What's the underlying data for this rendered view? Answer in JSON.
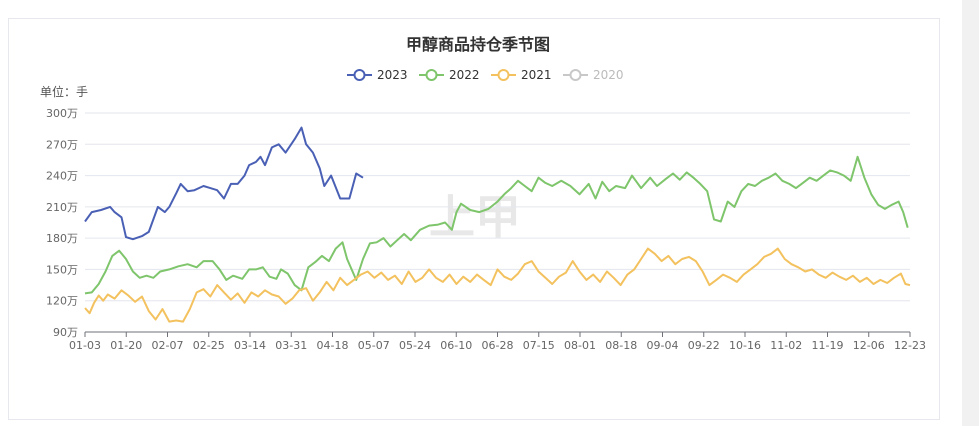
{
  "chart_data": {
    "type": "line",
    "title": "甲醇商品持仓季节图",
    "unit_label": "单位：手",
    "watermark": "上甲",
    "x_ticks": [
      "01-03",
      "01-20",
      "02-07",
      "02-25",
      "03-14",
      "03-31",
      "04-18",
      "05-07",
      "05-24",
      "06-10",
      "06-28",
      "07-15",
      "08-01",
      "08-18",
      "09-04",
      "09-22",
      "10-16",
      "11-02",
      "11-19",
      "12-06",
      "12-23"
    ],
    "y_ticks": [
      "90万",
      "120万",
      "150万",
      "180万",
      "210万",
      "240万",
      "270万",
      "300万"
    ],
    "ylim": [
      90,
      300
    ],
    "y_unit": "万手",
    "x_range_day_of_year": [
      3,
      365
    ],
    "grid": "horizontal",
    "legend_position": "top-center",
    "series": [
      {
        "name": "2023",
        "color": "#4a60b5",
        "active": true,
        "points": [
          [
            3,
            196
          ],
          [
            6,
            205
          ],
          [
            10,
            207
          ],
          [
            14,
            210
          ],
          [
            16,
            205
          ],
          [
            19,
            200
          ],
          [
            21,
            181
          ],
          [
            24,
            179
          ],
          [
            28,
            182
          ],
          [
            31,
            186
          ],
          [
            35,
            210
          ],
          [
            38,
            205
          ],
          [
            40,
            210
          ],
          [
            43,
            223
          ],
          [
            45,
            232
          ],
          [
            48,
            225
          ],
          [
            51,
            226
          ],
          [
            55,
            230
          ],
          [
            58,
            228
          ],
          [
            61,
            226
          ],
          [
            64,
            218
          ],
          [
            67,
            232
          ],
          [
            70,
            232
          ],
          [
            73,
            240
          ],
          [
            75,
            250
          ],
          [
            78,
            253
          ],
          [
            80,
            258
          ],
          [
            82,
            250
          ],
          [
            85,
            267
          ],
          [
            88,
            270
          ],
          [
            91,
            262
          ],
          [
            95,
            275
          ],
          [
            98,
            286
          ],
          [
            100,
            270
          ],
          [
            103,
            262
          ],
          [
            106,
            247
          ],
          [
            108,
            230
          ],
          [
            111,
            240
          ],
          [
            115,
            218
          ],
          [
            119,
            218
          ],
          [
            122,
            242
          ],
          [
            125,
            238
          ]
        ]
      },
      {
        "name": "2022",
        "color": "#7ec56b",
        "active": true,
        "points": [
          [
            3,
            127
          ],
          [
            6,
            128
          ],
          [
            9,
            136
          ],
          [
            12,
            148
          ],
          [
            15,
            163
          ],
          [
            18,
            168
          ],
          [
            21,
            160
          ],
          [
            24,
            148
          ],
          [
            27,
            142
          ],
          [
            30,
            144
          ],
          [
            33,
            142
          ],
          [
            36,
            148
          ],
          [
            40,
            150
          ],
          [
            44,
            153
          ],
          [
            48,
            155
          ],
          [
            52,
            152
          ],
          [
            55,
            158
          ],
          [
            59,
            158
          ],
          [
            62,
            150
          ],
          [
            65,
            140
          ],
          [
            68,
            144
          ],
          [
            72,
            141
          ],
          [
            75,
            150
          ],
          [
            78,
            150
          ],
          [
            81,
            152
          ],
          [
            84,
            143
          ],
          [
            87,
            141
          ],
          [
            89,
            150
          ],
          [
            92,
            146
          ],
          [
            95,
            135
          ],
          [
            98,
            130
          ],
          [
            101,
            152
          ],
          [
            104,
            157
          ],
          [
            107,
            163
          ],
          [
            110,
            158
          ],
          [
            113,
            170
          ],
          [
            116,
            176
          ],
          [
            118,
            160
          ],
          [
            122,
            140
          ],
          [
            125,
            160
          ],
          [
            128,
            175
          ],
          [
            131,
            176
          ],
          [
            134,
            180
          ],
          [
            137,
            172
          ],
          [
            140,
            178
          ],
          [
            143,
            184
          ],
          [
            146,
            178
          ],
          [
            150,
            188
          ],
          [
            154,
            192
          ],
          [
            158,
            193
          ],
          [
            161,
            195
          ],
          [
            164,
            188
          ],
          [
            166,
            205
          ],
          [
            168,
            213
          ],
          [
            172,
            207
          ],
          [
            176,
            205
          ],
          [
            180,
            208
          ],
          [
            184,
            215
          ],
          [
            187,
            222
          ],
          [
            190,
            228
          ],
          [
            193,
            235
          ],
          [
            196,
            230
          ],
          [
            199,
            225
          ],
          [
            202,
            238
          ],
          [
            205,
            233
          ],
          [
            208,
            230
          ],
          [
            212,
            235
          ],
          [
            216,
            230
          ],
          [
            220,
            222
          ],
          [
            224,
            232
          ],
          [
            227,
            218
          ],
          [
            230,
            234
          ],
          [
            233,
            225
          ],
          [
            236,
            230
          ],
          [
            240,
            228
          ],
          [
            243,
            240
          ],
          [
            247,
            228
          ],
          [
            251,
            238
          ],
          [
            254,
            230
          ],
          [
            258,
            237
          ],
          [
            261,
            242
          ],
          [
            264,
            236
          ],
          [
            267,
            243
          ],
          [
            270,
            238
          ],
          [
            273,
            232
          ],
          [
            276,
            225
          ],
          [
            279,
            198
          ],
          [
            282,
            196
          ],
          [
            285,
            215
          ],
          [
            288,
            210
          ],
          [
            291,
            225
          ],
          [
            294,
            232
          ],
          [
            297,
            230
          ],
          [
            300,
            235
          ],
          [
            303,
            238
          ],
          [
            306,
            242
          ],
          [
            309,
            235
          ],
          [
            312,
            232
          ],
          [
            315,
            228
          ],
          [
            318,
            233
          ],
          [
            321,
            238
          ],
          [
            324,
            235
          ],
          [
            327,
            240
          ],
          [
            330,
            245
          ],
          [
            333,
            243
          ],
          [
            336,
            240
          ],
          [
            339,
            235
          ],
          [
            342,
            258
          ],
          [
            345,
            238
          ],
          [
            348,
            222
          ],
          [
            351,
            212
          ],
          [
            354,
            208
          ],
          [
            357,
            212
          ],
          [
            360,
            215
          ],
          [
            362,
            205
          ],
          [
            364,
            190
          ]
        ]
      },
      {
        "name": "2021",
        "color": "#f3c25f",
        "active": true,
        "points": [
          [
            3,
            113
          ],
          [
            5,
            108
          ],
          [
            7,
            118
          ],
          [
            9,
            125
          ],
          [
            11,
            120
          ],
          [
            13,
            126
          ],
          [
            16,
            122
          ],
          [
            19,
            130
          ],
          [
            22,
            125
          ],
          [
            25,
            119
          ],
          [
            28,
            124
          ],
          [
            31,
            110
          ],
          [
            34,
            102
          ],
          [
            37,
            112
          ],
          [
            40,
            100
          ],
          [
            43,
            101
          ],
          [
            46,
            100
          ],
          [
            49,
            112
          ],
          [
            52,
            128
          ],
          [
            55,
            131
          ],
          [
            58,
            124
          ],
          [
            61,
            135
          ],
          [
            64,
            128
          ],
          [
            67,
            121
          ],
          [
            70,
            127
          ],
          [
            73,
            118
          ],
          [
            76,
            128
          ],
          [
            79,
            124
          ],
          [
            82,
            130
          ],
          [
            85,
            126
          ],
          [
            88,
            124
          ],
          [
            91,
            117
          ],
          [
            94,
            122
          ],
          [
            97,
            130
          ],
          [
            100,
            132
          ],
          [
            103,
            120
          ],
          [
            106,
            128
          ],
          [
            109,
            138
          ],
          [
            112,
            130
          ],
          [
            115,
            142
          ],
          [
            118,
            135
          ],
          [
            121,
            140
          ],
          [
            124,
            145
          ],
          [
            127,
            148
          ],
          [
            130,
            142
          ],
          [
            133,
            147
          ],
          [
            136,
            140
          ],
          [
            139,
            144
          ],
          [
            142,
            136
          ],
          [
            145,
            148
          ],
          [
            148,
            138
          ],
          [
            151,
            142
          ],
          [
            154,
            150
          ],
          [
            157,
            142
          ],
          [
            160,
            138
          ],
          [
            163,
            145
          ],
          [
            166,
            136
          ],
          [
            169,
            143
          ],
          [
            172,
            138
          ],
          [
            175,
            145
          ],
          [
            178,
            140
          ],
          [
            181,
            135
          ],
          [
            184,
            150
          ],
          [
            187,
            143
          ],
          [
            190,
            140
          ],
          [
            193,
            146
          ],
          [
            196,
            155
          ],
          [
            199,
            158
          ],
          [
            202,
            148
          ],
          [
            205,
            142
          ],
          [
            208,
            136
          ],
          [
            211,
            143
          ],
          [
            214,
            147
          ],
          [
            217,
            158
          ],
          [
            220,
            148
          ],
          [
            223,
            140
          ],
          [
            226,
            145
          ],
          [
            229,
            138
          ],
          [
            232,
            148
          ],
          [
            235,
            142
          ],
          [
            238,
            135
          ],
          [
            241,
            145
          ],
          [
            244,
            150
          ],
          [
            247,
            160
          ],
          [
            250,
            170
          ],
          [
            253,
            165
          ],
          [
            256,
            158
          ],
          [
            259,
            163
          ],
          [
            262,
            155
          ],
          [
            265,
            160
          ],
          [
            268,
            162
          ],
          [
            271,
            158
          ],
          [
            274,
            148
          ],
          [
            277,
            135
          ],
          [
            280,
            140
          ],
          [
            283,
            145
          ],
          [
            286,
            142
          ],
          [
            289,
            138
          ],
          [
            292,
            145
          ],
          [
            295,
            150
          ],
          [
            298,
            155
          ],
          [
            301,
            162
          ],
          [
            304,
            165
          ],
          [
            307,
            170
          ],
          [
            310,
            160
          ],
          [
            313,
            155
          ],
          [
            316,
            152
          ],
          [
            319,
            148
          ],
          [
            322,
            150
          ],
          [
            325,
            145
          ],
          [
            328,
            142
          ],
          [
            331,
            147
          ],
          [
            334,
            143
          ],
          [
            337,
            140
          ],
          [
            340,
            144
          ],
          [
            343,
            138
          ],
          [
            346,
            142
          ],
          [
            349,
            136
          ],
          [
            352,
            140
          ],
          [
            355,
            137
          ],
          [
            358,
            142
          ],
          [
            361,
            146
          ],
          [
            363,
            136
          ],
          [
            365,
            135
          ]
        ]
      },
      {
        "name": "2020",
        "color": "#c8c8c8",
        "active": false,
        "points": []
      }
    ]
  }
}
